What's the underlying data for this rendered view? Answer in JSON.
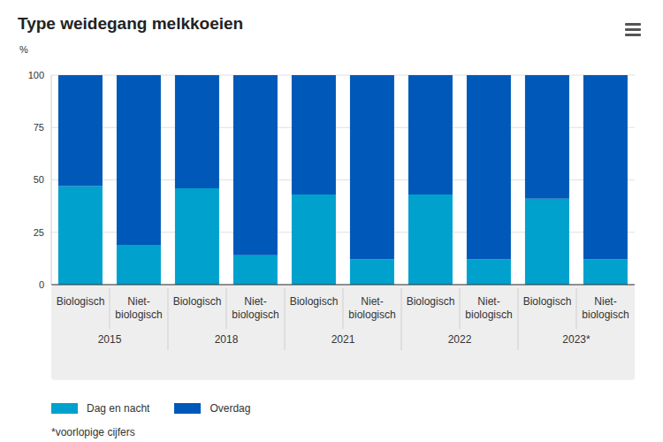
{
  "chart_data": {
    "type": "bar",
    "title": "Type weidegang melkkoeien",
    "y_label": "%",
    "categories": [
      "Biologisch",
      "Niet-biologisch",
      "Biologisch",
      "Niet-biologisch",
      "Biologisch",
      "Niet-biologisch",
      "Biologisch",
      "Niet-biologisch",
      "Biologisch",
      "Niet-biologisch"
    ],
    "category_groups": [
      "2015",
      "2018",
      "2021",
      "2022",
      "2023*"
    ],
    "series": [
      {
        "name": "Dag en nacht",
        "color": "#00a1cd",
        "values": [
          47,
          19,
          46,
          14,
          43,
          12,
          43,
          12,
          41,
          12
        ]
      },
      {
        "name": "Overdag",
        "color": "#0058b8",
        "values": [
          53,
          81,
          54,
          86,
          57,
          88,
          57,
          88,
          59,
          88
        ]
      }
    ],
    "stacked": true,
    "ylim": [
      0,
      100
    ],
    "yticks": [
      0,
      25,
      50,
      75,
      100
    ],
    "grid": true,
    "legend": "bottom",
    "footnote": "*voorlopige cijfers"
  }
}
